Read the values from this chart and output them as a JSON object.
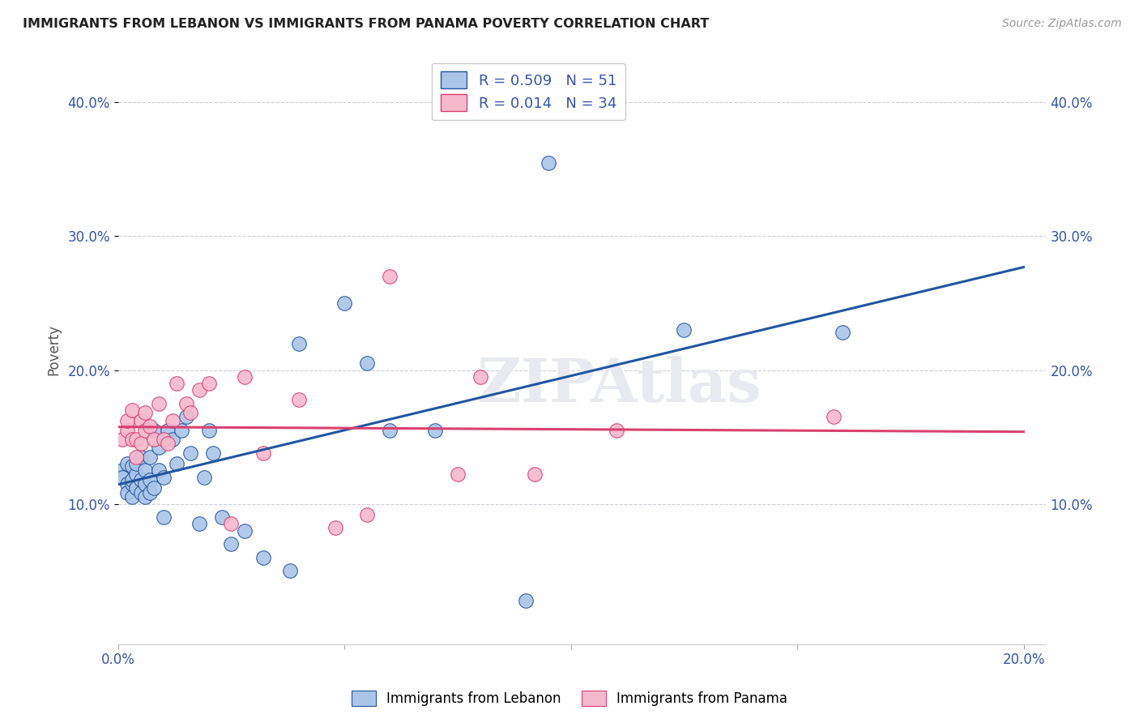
{
  "title": "IMMIGRANTS FROM LEBANON VS IMMIGRANTS FROM PANAMA POVERTY CORRELATION CHART",
  "source": "Source: ZipAtlas.com",
  "ylabel": "Poverty",
  "xlim": [
    0.0,
    0.205
  ],
  "ylim": [
    -0.005,
    0.435
  ],
  "xticks": [
    0.0,
    0.05,
    0.1,
    0.15,
    0.2
  ],
  "xtick_labels": [
    "0.0%",
    "",
    "",
    "",
    "20.0%"
  ],
  "yticks": [
    0.1,
    0.2,
    0.3,
    0.4
  ],
  "ytick_labels": [
    "10.0%",
    "20.0%",
    "30.0%",
    "40.0%"
  ],
  "legend_label1": "R = 0.509   N = 51",
  "legend_label2": "R = 0.014   N = 34",
  "lebanon_color": "#aac5e8",
  "panama_color": "#f5b8cc",
  "line_lebanon_color": "#2155a0",
  "line_panama_color": "#d94070",
  "watermark": "ZIPAtlas",
  "lebanon_x": [
    0.001,
    0.001,
    0.002,
    0.002,
    0.002,
    0.003,
    0.003,
    0.003,
    0.003,
    0.004,
    0.004,
    0.004,
    0.005,
    0.005,
    0.005,
    0.006,
    0.006,
    0.006,
    0.007,
    0.007,
    0.007,
    0.008,
    0.008,
    0.009,
    0.009,
    0.01,
    0.01,
    0.011,
    0.012,
    0.013,
    0.014,
    0.015,
    0.016,
    0.018,
    0.019,
    0.02,
    0.021,
    0.023,
    0.025,
    0.028,
    0.032,
    0.038,
    0.04,
    0.05,
    0.055,
    0.06,
    0.07,
    0.09,
    0.095,
    0.125,
    0.16
  ],
  "lebanon_y": [
    0.125,
    0.12,
    0.13,
    0.115,
    0.108,
    0.115,
    0.105,
    0.128,
    0.118,
    0.122,
    0.112,
    0.13,
    0.118,
    0.108,
    0.135,
    0.115,
    0.125,
    0.105,
    0.135,
    0.118,
    0.108,
    0.155,
    0.112,
    0.125,
    0.142,
    0.12,
    0.09,
    0.155,
    0.148,
    0.13,
    0.155,
    0.165,
    0.138,
    0.085,
    0.12,
    0.155,
    0.138,
    0.09,
    0.07,
    0.08,
    0.06,
    0.05,
    0.22,
    0.25,
    0.205,
    0.155,
    0.155,
    0.028,
    0.355,
    0.23,
    0.228
  ],
  "panama_x": [
    0.001,
    0.002,
    0.002,
    0.003,
    0.003,
    0.004,
    0.004,
    0.005,
    0.005,
    0.006,
    0.006,
    0.007,
    0.008,
    0.009,
    0.01,
    0.011,
    0.012,
    0.013,
    0.015,
    0.016,
    0.018,
    0.02,
    0.025,
    0.028,
    0.032,
    0.04,
    0.048,
    0.055,
    0.06,
    0.075,
    0.08,
    0.092,
    0.11,
    0.158
  ],
  "panama_y": [
    0.148,
    0.155,
    0.162,
    0.148,
    0.17,
    0.148,
    0.135,
    0.162,
    0.145,
    0.168,
    0.155,
    0.158,
    0.148,
    0.175,
    0.148,
    0.145,
    0.162,
    0.19,
    0.175,
    0.168,
    0.185,
    0.19,
    0.085,
    0.195,
    0.138,
    0.178,
    0.082,
    0.092,
    0.27,
    0.122,
    0.195,
    0.122,
    0.155,
    0.165
  ]
}
